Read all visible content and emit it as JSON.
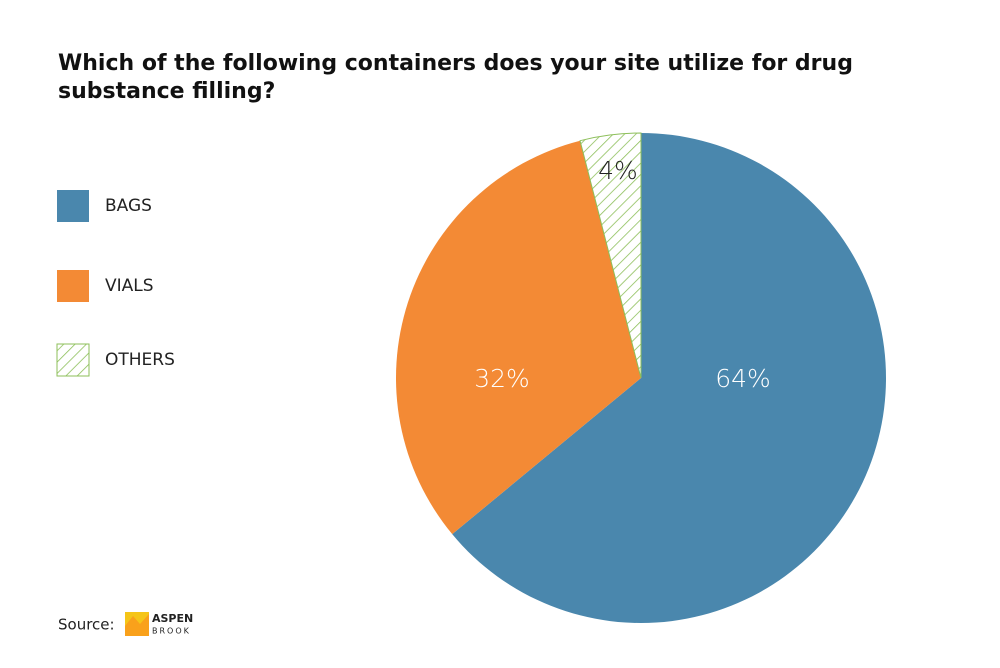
{
  "chart_data": {
    "type": "pie",
    "title": "Which of the following containers does your site utilize for drug substance filling?",
    "categories": [
      "BAGS",
      "VIALS",
      "OTHERS"
    ],
    "values": [
      64,
      32,
      4
    ],
    "value_labels": [
      "64%",
      "32%",
      "4%"
    ],
    "colors": [
      "#4a87ad",
      "#f38a35",
      "#8dbf5a"
    ],
    "hatched": [
      false,
      false,
      true
    ],
    "source": "Source:",
    "logo": [
      "ASPEN",
      "BROOK"
    ]
  }
}
